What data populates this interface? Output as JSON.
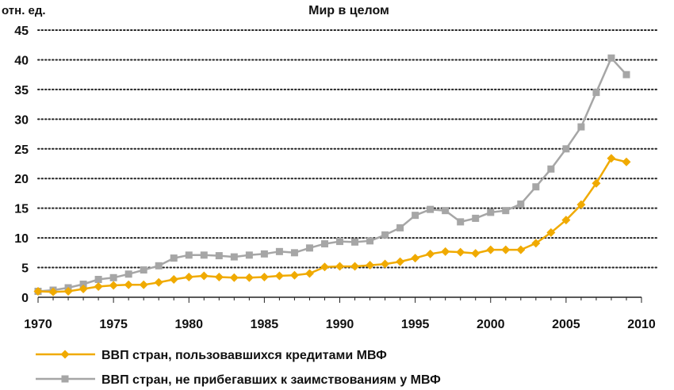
{
  "chart_data": {
    "type": "line",
    "title": "Мир в целом",
    "ylabel": "отн. ед.",
    "xlabel": "",
    "xlim": [
      1970,
      2010
    ],
    "ylim": [
      0,
      45
    ],
    "x_ticks": [
      1970,
      1975,
      1980,
      1985,
      1990,
      1995,
      2000,
      2005,
      2010
    ],
    "y_ticks": [
      0,
      5,
      10,
      15,
      20,
      25,
      30,
      35,
      40,
      45
    ],
    "grid": "horizontal dotted",
    "legend_position": "bottom-left",
    "x": [
      1970,
      1971,
      1972,
      1973,
      1974,
      1975,
      1976,
      1977,
      1978,
      1979,
      1980,
      1981,
      1982,
      1983,
      1984,
      1985,
      1986,
      1987,
      1988,
      1989,
      1990,
      1991,
      1992,
      1993,
      1994,
      1995,
      1996,
      1997,
      1998,
      1999,
      2000,
      2001,
      2002,
      2003,
      2004,
      2005,
      2006,
      2007,
      2008,
      2009
    ],
    "series": [
      {
        "name": "ВВП стран, пользовавшихся кредитами МВФ",
        "color": "#f0aa00",
        "marker": "diamond",
        "values": [
          1.0,
          0.9,
          1.0,
          1.4,
          1.8,
          2.0,
          2.1,
          2.1,
          2.5,
          3.0,
          3.4,
          3.6,
          3.4,
          3.3,
          3.3,
          3.4,
          3.6,
          3.7,
          4.0,
          5.1,
          5.2,
          5.2,
          5.4,
          5.6,
          6.0,
          6.6,
          7.3,
          7.7,
          7.6,
          7.4,
          8.0,
          8.0,
          8.0,
          9.1,
          10.9,
          13.0,
          15.6,
          19.2,
          23.4,
          22.8
        ]
      },
      {
        "name": "ВВП стран, не прибегавших к заимствованиям у МВФ",
        "color": "#a6a6a6",
        "marker": "square",
        "values": [
          1.0,
          1.2,
          1.6,
          2.2,
          3.0,
          3.3,
          3.9,
          4.6,
          5.3,
          6.6,
          7.1,
          7.1,
          7.0,
          6.8,
          7.1,
          7.3,
          7.7,
          7.5,
          8.3,
          9.0,
          9.4,
          9.3,
          9.5,
          10.5,
          11.7,
          13.8,
          14.8,
          14.6,
          12.7,
          13.3,
          14.3,
          14.6,
          15.7,
          18.6,
          21.6,
          25.0,
          28.7,
          34.5,
          40.3,
          37.5
        ]
      }
    ]
  }
}
